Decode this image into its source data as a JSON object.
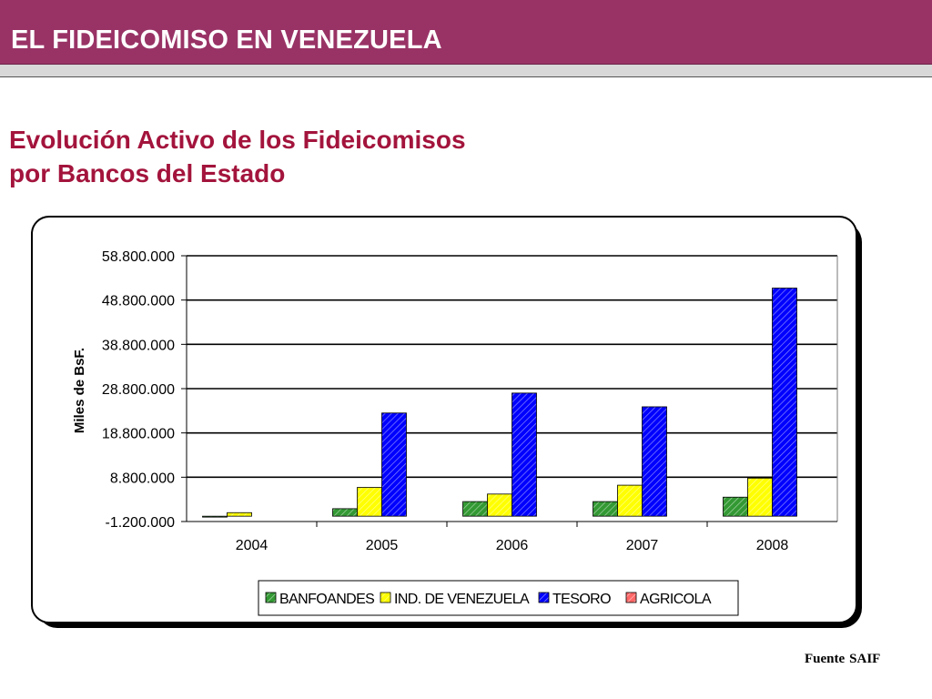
{
  "header": {
    "title": "EL FIDEICOMISO EN VENEZUELA"
  },
  "subtitle": {
    "line1": "Evolución Activo de los Fideicomisos",
    "line2": "por Bancos del Estado"
  },
  "source": {
    "label": "Fuente",
    "value": "SAIF"
  },
  "colors": {
    "header_bg": "#993366",
    "subtitle": "#a3143c",
    "banfoandes": "#339933",
    "ind_venezuela": "#ffff00",
    "tesoro": "#0000ff",
    "agricola": "#ff6666"
  },
  "chart_data": {
    "type": "bar",
    "title": "",
    "xlabel": "",
    "ylabel": "Miles de BsF.",
    "ylim": [
      -1200000,
      58800000
    ],
    "yticks": [
      -1200000,
      8800000,
      18800000,
      28800000,
      38800000,
      48800000,
      58800000
    ],
    "ytick_labels": [
      "-1.200.000",
      "8.800.000",
      "18.800.000",
      "28.800.000",
      "38.800.000",
      "48.800.000",
      "58.800.000"
    ],
    "categories": [
      "2004",
      "2005",
      "2006",
      "2007",
      "2008"
    ],
    "series": [
      {
        "name": "BANFOANDES",
        "color": "#339933",
        "values": [
          0,
          1700000,
          3300000,
          3300000,
          4300000
        ]
      },
      {
        "name": "IND. DE VENEZUELA",
        "color": "#ffff00",
        "values": [
          800000,
          6500000,
          5000000,
          7000000,
          8600000
        ]
      },
      {
        "name": "TESORO",
        "color": "#0000ff",
        "values": [
          null,
          23300000,
          27800000,
          24700000,
          51500000
        ]
      },
      {
        "name": "AGRICOLA",
        "color": "#ff6666",
        "values": [
          null,
          null,
          null,
          null,
          null
        ]
      }
    ],
    "grid": true,
    "legend_position": "bottom"
  }
}
